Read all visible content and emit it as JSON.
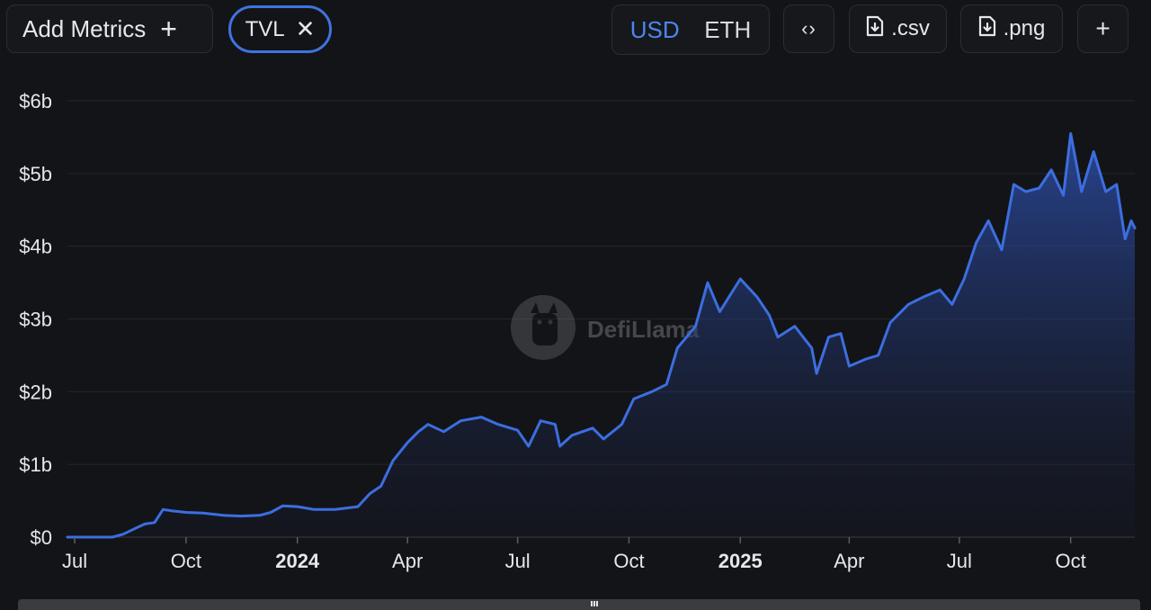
{
  "toolbar": {
    "add_metrics_label": "Add Metrics",
    "add_icon": "plus-icon",
    "metric_chip_label": "TVL",
    "remove_icon": "close-icon",
    "currency_options": [
      "USD",
      "ETH"
    ],
    "currency_selected": "USD",
    "embed_icon": "code-brackets-icon",
    "csv_label": ".csv",
    "png_label": ".png",
    "download_icon": "file-download-icon",
    "more_icon": "plus-icon"
  },
  "watermark": {
    "text": "DefiLlama",
    "icon": "llama-logo-icon"
  },
  "colors": {
    "accent": "#3f73e0",
    "line": "#3c6ee0",
    "active_toggle": "#4d86f0",
    "background": "#131417"
  },
  "chart_data": {
    "type": "area",
    "title": "",
    "series": [
      {
        "name": "TVL",
        "points": [
          [
            "2023-06-25",
            0.0
          ],
          [
            "2023-07-15",
            0.0
          ],
          [
            "2023-08-01",
            0.0
          ],
          [
            "2023-08-10",
            0.04
          ],
          [
            "2023-08-20",
            0.12
          ],
          [
            "2023-08-28",
            0.18
          ],
          [
            "2023-09-05",
            0.2
          ],
          [
            "2023-09-12",
            0.38
          ],
          [
            "2023-09-20",
            0.36
          ],
          [
            "2023-10-01",
            0.34
          ],
          [
            "2023-10-15",
            0.33
          ],
          [
            "2023-11-01",
            0.3
          ],
          [
            "2023-11-15",
            0.29
          ],
          [
            "2023-12-01",
            0.3
          ],
          [
            "2023-12-10",
            0.34
          ],
          [
            "2023-12-20",
            0.43
          ],
          [
            "2024-01-01",
            0.42
          ],
          [
            "2024-01-15",
            0.38
          ],
          [
            "2024-02-01",
            0.38
          ],
          [
            "2024-02-20",
            0.42
          ],
          [
            "2024-03-01",
            0.6
          ],
          [
            "2024-03-10",
            0.7
          ],
          [
            "2024-03-20",
            1.05
          ],
          [
            "2024-04-01",
            1.3
          ],
          [
            "2024-04-10",
            1.45
          ],
          [
            "2024-04-18",
            1.55
          ],
          [
            "2024-05-01",
            1.45
          ],
          [
            "2024-05-15",
            1.6
          ],
          [
            "2024-06-01",
            1.65
          ],
          [
            "2024-06-15",
            1.55
          ],
          [
            "2024-07-01",
            1.47
          ],
          [
            "2024-07-10",
            1.25
          ],
          [
            "2024-07-20",
            1.6
          ],
          [
            "2024-08-01",
            1.55
          ],
          [
            "2024-08-05",
            1.25
          ],
          [
            "2024-08-15",
            1.4
          ],
          [
            "2024-09-01",
            1.5
          ],
          [
            "2024-09-10",
            1.35
          ],
          [
            "2024-09-25",
            1.55
          ],
          [
            "2024-10-05",
            1.9
          ],
          [
            "2024-10-20",
            2.0
          ],
          [
            "2024-11-01",
            2.1
          ],
          [
            "2024-11-10",
            2.6
          ],
          [
            "2024-11-25",
            2.9
          ],
          [
            "2024-12-05",
            3.5
          ],
          [
            "2024-12-15",
            3.1
          ],
          [
            "2025-01-01",
            3.55
          ],
          [
            "2025-01-15",
            3.3
          ],
          [
            "2025-01-25",
            3.05
          ],
          [
            "2025-02-01",
            2.75
          ],
          [
            "2025-02-15",
            2.9
          ],
          [
            "2025-03-01",
            2.6
          ],
          [
            "2025-03-05",
            2.25
          ],
          [
            "2025-03-15",
            2.75
          ],
          [
            "2025-03-25",
            2.8
          ],
          [
            "2025-04-01",
            2.35
          ],
          [
            "2025-04-15",
            2.45
          ],
          [
            "2025-04-25",
            2.5
          ],
          [
            "2025-05-05",
            2.95
          ],
          [
            "2025-05-20",
            3.2
          ],
          [
            "2025-06-01",
            3.3
          ],
          [
            "2025-06-15",
            3.4
          ],
          [
            "2025-06-25",
            3.2
          ],
          [
            "2025-07-05",
            3.55
          ],
          [
            "2025-07-15",
            4.05
          ],
          [
            "2025-07-25",
            4.35
          ],
          [
            "2025-08-05",
            3.95
          ],
          [
            "2025-08-15",
            4.85
          ],
          [
            "2025-08-25",
            4.75
          ],
          [
            "2025-09-05",
            4.8
          ],
          [
            "2025-09-15",
            5.05
          ],
          [
            "2025-09-25",
            4.7
          ],
          [
            "2025-10-01",
            5.55
          ],
          [
            "2025-10-10",
            4.75
          ],
          [
            "2025-10-20",
            5.3
          ],
          [
            "2025-10-30",
            4.75
          ],
          [
            "2025-11-08",
            4.85
          ],
          [
            "2025-11-15",
            4.1
          ],
          [
            "2025-11-20",
            4.35
          ],
          [
            "2025-11-23",
            4.25
          ]
        ]
      }
    ],
    "yticks": [
      "$0",
      "$1b",
      "$2b",
      "$3b",
      "$4b",
      "$5b",
      "$6b"
    ],
    "ylim": [
      0,
      6
    ],
    "xticks": [
      {
        "date": "2023-07-01",
        "label": "Jul",
        "bold": false
      },
      {
        "date": "2023-10-01",
        "label": "Oct",
        "bold": false
      },
      {
        "date": "2024-01-01",
        "label": "2024",
        "bold": true
      },
      {
        "date": "2024-04-01",
        "label": "Apr",
        "bold": false
      },
      {
        "date": "2024-07-01",
        "label": "Jul",
        "bold": false
      },
      {
        "date": "2024-10-01",
        "label": "Oct",
        "bold": false
      },
      {
        "date": "2025-01-01",
        "label": "2025",
        "bold": true
      },
      {
        "date": "2025-04-01",
        "label": "Apr",
        "bold": false
      },
      {
        "date": "2025-07-01",
        "label": "Jul",
        "bold": false
      },
      {
        "date": "2025-10-01",
        "label": "Oct",
        "bold": false
      }
    ],
    "xlim": [
      "2023-06-25",
      "2025-11-23"
    ],
    "grid": true,
    "legend": "none"
  }
}
